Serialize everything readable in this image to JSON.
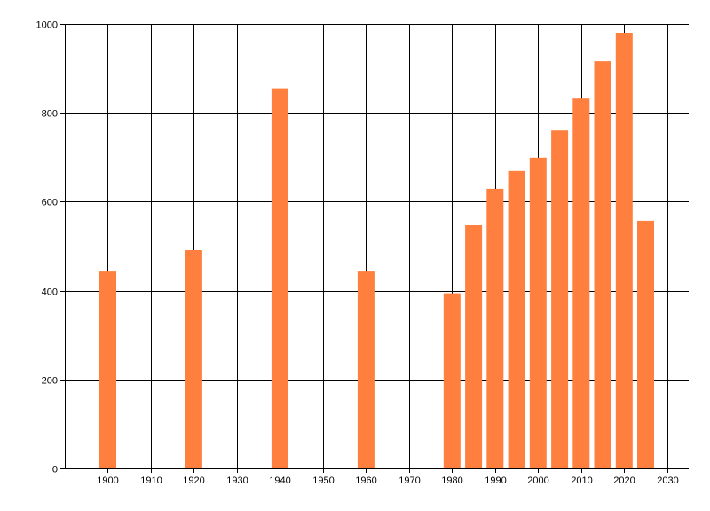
{
  "chart_data": {
    "type": "bar",
    "x": [
      1900,
      1920,
      1940,
      1960,
      1980,
      1985,
      1990,
      1995,
      2000,
      2005,
      2010,
      2015,
      2020,
      2025
    ],
    "values": [
      443,
      491,
      855,
      443,
      394,
      547,
      629,
      669,
      699,
      760,
      832,
      916,
      980,
      557
    ],
    "title": "",
    "xlabel": "",
    "ylabel": "",
    "xlim": [
      1890,
      2035
    ],
    "ylim": [
      0,
      1000
    ],
    "x_ticks": [
      1900,
      1910,
      1920,
      1930,
      1940,
      1950,
      1960,
      1970,
      1980,
      1990,
      2000,
      2010,
      2020,
      2030
    ],
    "y_ticks": [
      0,
      200,
      400,
      600,
      800,
      1000
    ],
    "grid": true,
    "legend": "none",
    "bar_color": "#ff7f3f",
    "grid_color": "#000000"
  }
}
